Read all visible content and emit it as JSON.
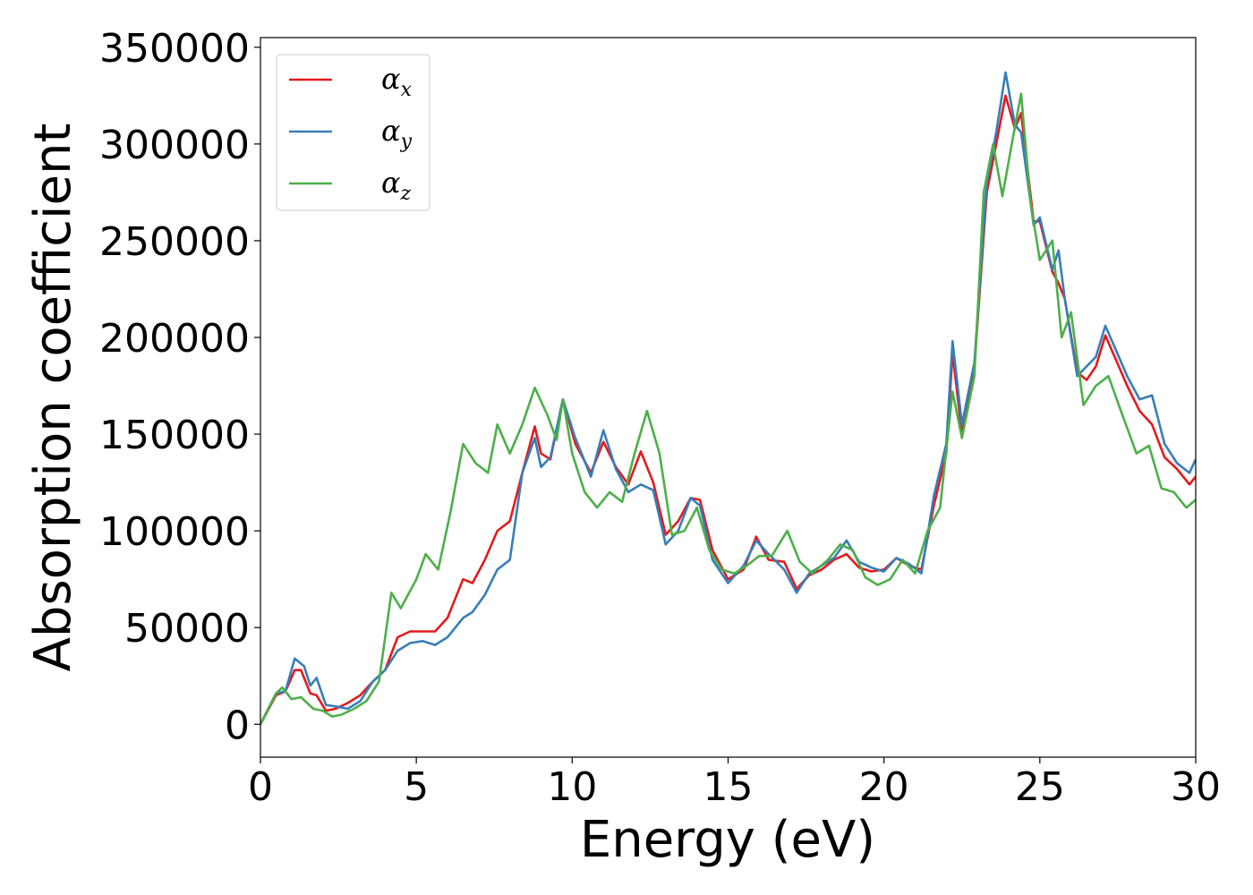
{
  "chart_data": {
    "type": "line",
    "xlabel": "Energy (eV)",
    "ylabel": "Absorption coefficient",
    "xlim": [
      0,
      30
    ],
    "ylim": [
      -17000,
      355000
    ],
    "xticks": [
      0,
      5,
      10,
      15,
      20,
      25,
      30
    ],
    "yticks": [
      0,
      50000,
      100000,
      150000,
      200000,
      250000,
      300000,
      350000
    ],
    "grid": false,
    "legend_position": "top-left",
    "series": [
      {
        "name": "α_x",
        "symbol": "α",
        "subscript": "x",
        "color": "#e41a1c",
        "points": [
          [
            0,
            0
          ],
          [
            0.5,
            15000
          ],
          [
            0.8,
            17000
          ],
          [
            1.1,
            28000
          ],
          [
            1.3,
            28000
          ],
          [
            1.6,
            16000
          ],
          [
            1.8,
            15000
          ],
          [
            2.1,
            7000
          ],
          [
            2.4,
            8000
          ],
          [
            2.8,
            11000
          ],
          [
            3.2,
            15000
          ],
          [
            3.6,
            22000
          ],
          [
            4.0,
            28000
          ],
          [
            4.4,
            45000
          ],
          [
            4.8,
            48000
          ],
          [
            5.2,
            48000
          ],
          [
            5.6,
            48000
          ],
          [
            6.0,
            55000
          ],
          [
            6.5,
            75000
          ],
          [
            6.8,
            73000
          ],
          [
            7.2,
            85000
          ],
          [
            7.6,
            100000
          ],
          [
            8.0,
            105000
          ],
          [
            8.4,
            130000
          ],
          [
            8.8,
            154000
          ],
          [
            9.0,
            140000
          ],
          [
            9.3,
            137000
          ],
          [
            9.7,
            168000
          ],
          [
            10.1,
            145000
          ],
          [
            10.6,
            130000
          ],
          [
            11.0,
            146000
          ],
          [
            11.4,
            133000
          ],
          [
            11.8,
            124000
          ],
          [
            12.2,
            141000
          ],
          [
            12.6,
            125000
          ],
          [
            13.0,
            98000
          ],
          [
            13.4,
            105000
          ],
          [
            13.8,
            117000
          ],
          [
            14.1,
            116000
          ],
          [
            14.5,
            90000
          ],
          [
            15.0,
            75000
          ],
          [
            15.5,
            80000
          ],
          [
            15.9,
            97000
          ],
          [
            16.3,
            85000
          ],
          [
            16.8,
            84000
          ],
          [
            17.2,
            70000
          ],
          [
            17.6,
            77000
          ],
          [
            18.0,
            80000
          ],
          [
            18.4,
            85000
          ],
          [
            18.8,
            88000
          ],
          [
            19.2,
            81000
          ],
          [
            19.6,
            79000
          ],
          [
            20.0,
            80000
          ],
          [
            20.4,
            86000
          ],
          [
            20.8,
            82000
          ],
          [
            21.2,
            80000
          ],
          [
            21.6,
            113000
          ],
          [
            22.0,
            140000
          ],
          [
            22.2,
            192000
          ],
          [
            22.5,
            150000
          ],
          [
            22.9,
            185000
          ],
          [
            23.3,
            275000
          ],
          [
            23.6,
            300000
          ],
          [
            23.9,
            325000
          ],
          [
            24.2,
            308000
          ],
          [
            24.4,
            316000
          ],
          [
            24.8,
            260000
          ],
          [
            25.0,
            260000
          ],
          [
            25.4,
            234000
          ],
          [
            25.6,
            228000
          ],
          [
            25.8,
            220000
          ],
          [
            26.2,
            182000
          ],
          [
            26.5,
            178000
          ],
          [
            26.8,
            185000
          ],
          [
            27.1,
            201000
          ],
          [
            27.4,
            190000
          ],
          [
            27.8,
            175000
          ],
          [
            28.2,
            162000
          ],
          [
            28.6,
            155000
          ],
          [
            29.0,
            138000
          ],
          [
            29.4,
            132000
          ],
          [
            29.8,
            124000
          ],
          [
            30.0,
            128000
          ]
        ]
      },
      {
        "name": "α_y",
        "symbol": "α",
        "subscript": "y",
        "color": "#377eb8",
        "points": [
          [
            0,
            0
          ],
          [
            0.5,
            16000
          ],
          [
            0.8,
            17000
          ],
          [
            1.1,
            34000
          ],
          [
            1.4,
            30000
          ],
          [
            1.6,
            20000
          ],
          [
            1.8,
            24000
          ],
          [
            2.1,
            10000
          ],
          [
            2.5,
            9000
          ],
          [
            2.8,
            8000
          ],
          [
            3.2,
            12000
          ],
          [
            3.6,
            22000
          ],
          [
            4.0,
            28000
          ],
          [
            4.4,
            38000
          ],
          [
            4.8,
            42000
          ],
          [
            5.2,
            43000
          ],
          [
            5.6,
            41000
          ],
          [
            6.0,
            45000
          ],
          [
            6.5,
            55000
          ],
          [
            6.8,
            58000
          ],
          [
            7.2,
            67000
          ],
          [
            7.6,
            80000
          ],
          [
            8.0,
            85000
          ],
          [
            8.4,
            130000
          ],
          [
            8.8,
            148000
          ],
          [
            9.0,
            133000
          ],
          [
            9.3,
            138000
          ],
          [
            9.7,
            168000
          ],
          [
            10.1,
            148000
          ],
          [
            10.6,
            128000
          ],
          [
            11.0,
            152000
          ],
          [
            11.4,
            132000
          ],
          [
            11.8,
            120000
          ],
          [
            12.2,
            124000
          ],
          [
            12.6,
            121000
          ],
          [
            13.0,
            93000
          ],
          [
            13.4,
            100000
          ],
          [
            13.8,
            117000
          ],
          [
            14.1,
            113000
          ],
          [
            14.5,
            85000
          ],
          [
            15.0,
            73000
          ],
          [
            15.5,
            82000
          ],
          [
            15.9,
            95000
          ],
          [
            16.3,
            88000
          ],
          [
            16.8,
            80000
          ],
          [
            17.2,
            68000
          ],
          [
            17.6,
            78000
          ],
          [
            18.0,
            82000
          ],
          [
            18.4,
            86000
          ],
          [
            18.8,
            95000
          ],
          [
            19.2,
            84000
          ],
          [
            19.6,
            81000
          ],
          [
            20.0,
            79000
          ],
          [
            20.4,
            86000
          ],
          [
            20.8,
            83000
          ],
          [
            21.2,
            78000
          ],
          [
            21.6,
            118000
          ],
          [
            22.0,
            145000
          ],
          [
            22.2,
            198000
          ],
          [
            22.5,
            155000
          ],
          [
            22.9,
            187000
          ],
          [
            23.3,
            280000
          ],
          [
            23.6,
            306000
          ],
          [
            23.9,
            337000
          ],
          [
            24.2,
            310000
          ],
          [
            24.4,
            306000
          ],
          [
            24.8,
            258000
          ],
          [
            25.0,
            262000
          ],
          [
            25.4,
            235000
          ],
          [
            25.6,
            245000
          ],
          [
            25.8,
            220000
          ],
          [
            26.2,
            180000
          ],
          [
            26.5,
            185000
          ],
          [
            26.8,
            190000
          ],
          [
            27.1,
            206000
          ],
          [
            27.4,
            195000
          ],
          [
            27.8,
            180000
          ],
          [
            28.2,
            168000
          ],
          [
            28.6,
            170000
          ],
          [
            29.0,
            145000
          ],
          [
            29.4,
            135000
          ],
          [
            29.8,
            130000
          ],
          [
            30.0,
            137000
          ]
        ]
      },
      {
        "name": "α_z",
        "symbol": "α",
        "subscript": "z",
        "color": "#4daf4a",
        "points": [
          [
            0,
            0
          ],
          [
            0.5,
            16000
          ],
          [
            0.7,
            19000
          ],
          [
            1.0,
            13000
          ],
          [
            1.3,
            14000
          ],
          [
            1.7,
            8000
          ],
          [
            2.0,
            7000
          ],
          [
            2.3,
            4000
          ],
          [
            2.6,
            5000
          ],
          [
            3.0,
            8000
          ],
          [
            3.4,
            12000
          ],
          [
            3.8,
            22000
          ],
          [
            4.2,
            68000
          ],
          [
            4.5,
            60000
          ],
          [
            5.0,
            75000
          ],
          [
            5.3,
            88000
          ],
          [
            5.7,
            80000
          ],
          [
            6.1,
            110000
          ],
          [
            6.5,
            145000
          ],
          [
            6.9,
            135000
          ],
          [
            7.3,
            130000
          ],
          [
            7.6,
            155000
          ],
          [
            8.0,
            140000
          ],
          [
            8.4,
            155000
          ],
          [
            8.8,
            174000
          ],
          [
            9.2,
            160000
          ],
          [
            9.5,
            147000
          ],
          [
            9.7,
            168000
          ],
          [
            10.0,
            140000
          ],
          [
            10.4,
            120000
          ],
          [
            10.8,
            112000
          ],
          [
            11.2,
            120000
          ],
          [
            11.6,
            115000
          ],
          [
            12.0,
            140000
          ],
          [
            12.4,
            162000
          ],
          [
            12.8,
            140000
          ],
          [
            13.2,
            98000
          ],
          [
            13.6,
            100000
          ],
          [
            14.0,
            112000
          ],
          [
            14.4,
            90000
          ],
          [
            14.8,
            80000
          ],
          [
            15.2,
            78000
          ],
          [
            15.6,
            82000
          ],
          [
            16.0,
            87000
          ],
          [
            16.4,
            87000
          ],
          [
            16.9,
            100000
          ],
          [
            17.3,
            84000
          ],
          [
            17.7,
            78000
          ],
          [
            18.2,
            85000
          ],
          [
            18.6,
            93000
          ],
          [
            19.0,
            90000
          ],
          [
            19.4,
            76000
          ],
          [
            19.8,
            72000
          ],
          [
            20.2,
            75000
          ],
          [
            20.6,
            85000
          ],
          [
            21.0,
            78000
          ],
          [
            21.4,
            100000
          ],
          [
            21.8,
            112000
          ],
          [
            22.2,
            172000
          ],
          [
            22.5,
            148000
          ],
          [
            22.9,
            180000
          ],
          [
            23.2,
            275000
          ],
          [
            23.5,
            300000
          ],
          [
            23.8,
            273000
          ],
          [
            24.1,
            300000
          ],
          [
            24.4,
            326000
          ],
          [
            24.7,
            270000
          ],
          [
            25.0,
            240000
          ],
          [
            25.4,
            250000
          ],
          [
            25.7,
            200000
          ],
          [
            26.0,
            213000
          ],
          [
            26.4,
            165000
          ],
          [
            26.8,
            175000
          ],
          [
            27.2,
            180000
          ],
          [
            27.6,
            162000
          ],
          [
            28.1,
            140000
          ],
          [
            28.5,
            144000
          ],
          [
            28.9,
            122000
          ],
          [
            29.3,
            120000
          ],
          [
            29.7,
            112000
          ],
          [
            30.0,
            116000
          ]
        ]
      }
    ]
  }
}
